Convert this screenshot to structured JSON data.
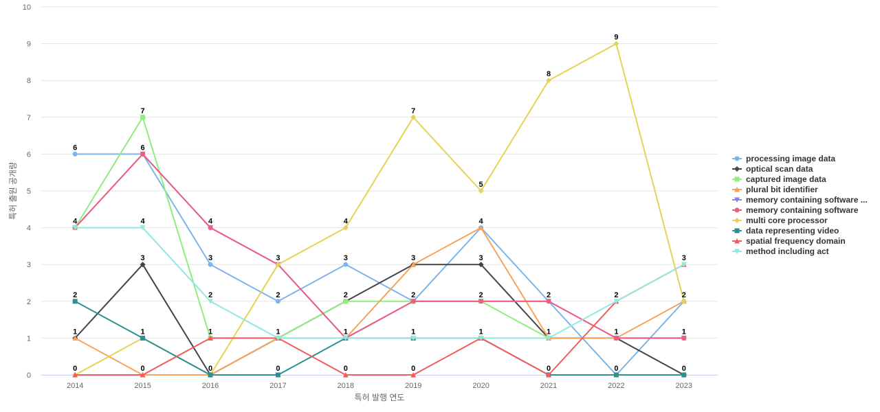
{
  "chart_data": {
    "type": "line",
    "xlabel": "특허 발행 연도",
    "ylabel": "특허 출원 공개량",
    "ylim": [
      0,
      10
    ],
    "yticks": [
      0,
      1,
      2,
      3,
      4,
      5,
      6,
      7,
      8,
      9,
      10
    ],
    "grid": true,
    "legend_position": "right",
    "categories": [
      "2014",
      "2015",
      "2016",
      "2017",
      "2018",
      "2019",
      "2020",
      "2021",
      "2022",
      "2023"
    ],
    "series": [
      {
        "name": "processing image data",
        "color": "#7cb5ec",
        "marker": "circle",
        "values": [
          6,
          6,
          3,
          2,
          3,
          2,
          4,
          2,
          0,
          2
        ]
      },
      {
        "name": "optical scan data",
        "color": "#434348",
        "marker": "diamond",
        "values": [
          1,
          3,
          0,
          1,
          2,
          3,
          3,
          1,
          1,
          0
        ]
      },
      {
        "name": "captured image data",
        "color": "#90ed7d",
        "marker": "square",
        "values": [
          4,
          7,
          1,
          1,
          2,
          2,
          2,
          1,
          1,
          1
        ]
      },
      {
        "name": "plural bit identifier",
        "color": "#f7a35c",
        "marker": "triangle",
        "values": [
          1,
          0,
          0,
          1,
          1,
          3,
          4,
          1,
          1,
          2
        ]
      },
      {
        "name": "memory containing software ...",
        "color": "#8085e9",
        "marker": "triangle-down",
        "values": [
          4,
          6,
          4,
          3,
          1,
          2,
          2,
          2,
          1,
          1
        ]
      },
      {
        "name": "memory containing software",
        "color": "#f15c80",
        "marker": "circle",
        "values": [
          4,
          6,
          4,
          3,
          1,
          2,
          2,
          2,
          1,
          1
        ]
      },
      {
        "name": "multi core processor",
        "color": "#e4d354",
        "marker": "diamond",
        "values": [
          0,
          1,
          0,
          3,
          4,
          7,
          5,
          8,
          9,
          2
        ]
      },
      {
        "name": "data representing video",
        "color": "#2b908f",
        "marker": "square",
        "values": [
          2,
          1,
          0,
          0,
          1,
          1,
          1,
          0,
          0,
          0
        ]
      },
      {
        "name": "spatial frequency domain",
        "color": "#f45b5b",
        "marker": "triangle",
        "values": [
          0,
          0,
          1,
          1,
          0,
          0,
          1,
          0,
          2,
          3
        ]
      },
      {
        "name": "method including act",
        "color": "#91e8e1",
        "marker": "triangle-down",
        "values": [
          4,
          4,
          2,
          1,
          1,
          1,
          1,
          1,
          2,
          3
        ]
      }
    ],
    "data_labels": [
      {
        "x": "2014",
        "values": [
          6,
          4,
          2,
          1,
          0
        ]
      },
      {
        "x": "2015",
        "values": [
          7,
          6,
          4,
          3,
          1,
          0
        ]
      },
      {
        "x": "2016",
        "values": [
          4,
          3,
          2,
          1,
          0
        ]
      },
      {
        "x": "2017",
        "values": [
          3,
          2,
          1,
          0
        ]
      },
      {
        "x": "2018",
        "values": [
          4,
          3,
          2,
          1,
          0
        ]
      },
      {
        "x": "2019",
        "values": [
          7,
          3,
          2,
          1,
          0
        ]
      },
      {
        "x": "2020",
        "values": [
          5,
          4,
          3,
          2,
          1
        ]
      },
      {
        "x": "2021",
        "values": [
          8,
          2,
          1,
          0
        ]
      },
      {
        "x": "2022",
        "values": [
          9,
          2,
          1,
          0
        ]
      },
      {
        "x": "2023",
        "values": [
          3,
          2,
          1,
          0
        ]
      }
    ]
  }
}
